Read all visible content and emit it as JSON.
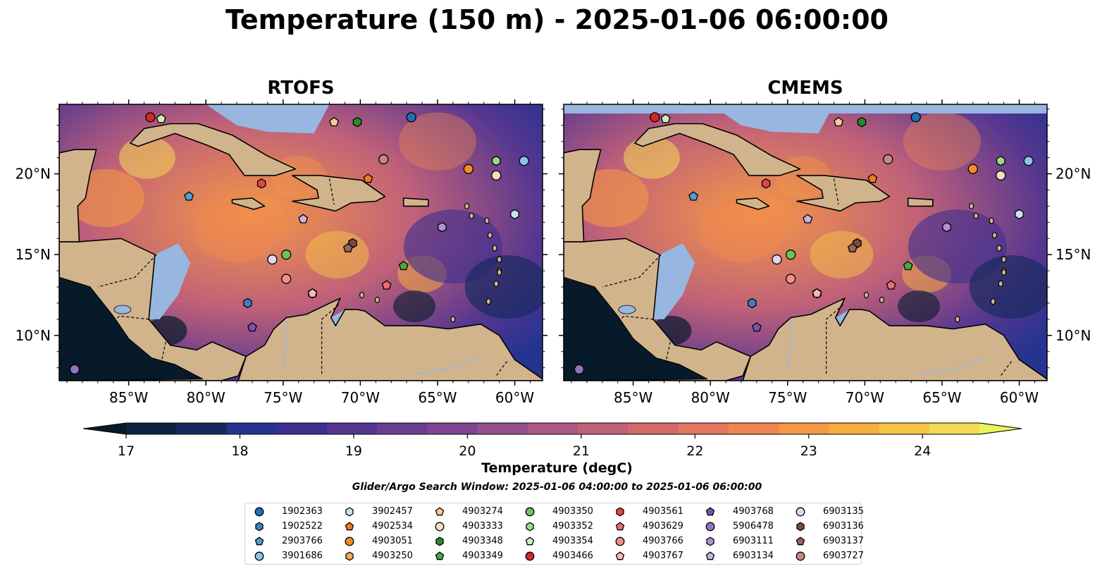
{
  "suptitle": "Temperature (150 m) - 2025-01-06 06:00:00",
  "panels": [
    {
      "title": "RTOFS"
    },
    {
      "title": "CMEMS"
    }
  ],
  "axes": {
    "x_ticks": [
      "85°W",
      "80°W",
      "75°W",
      "70°W",
      "65°W",
      "60°W"
    ],
    "y_ticks": [
      "20°N",
      "15°N",
      "10°N"
    ]
  },
  "colorbar": {
    "label": "Temperature (degC)",
    "ticks": [
      "17",
      "18",
      "19",
      "20",
      "21",
      "22",
      "23",
      "24"
    ],
    "colors": [
      "#0b2540",
      "#152a5c",
      "#253391",
      "#3c2f8f",
      "#553690",
      "#6a3f91",
      "#7e4590",
      "#964f8d",
      "#ab5886",
      "#c06179",
      "#d3696a",
      "#e3775d",
      "#ef8650",
      "#f59845",
      "#f7ac3f",
      "#f5c445",
      "#f2da55"
    ],
    "under_color": "#071a2a",
    "over_color": "#e8f55a"
  },
  "search_window": "Glider/Argo Search Window: 2025-01-06 04:00:00 to 2025-01-06 06:00:00",
  "legend": [
    {
      "id": "1902363",
      "marker": "circle",
      "color": "#1f6fb4"
    },
    {
      "id": "1902522",
      "marker": "hexagon",
      "color": "#3f7fc0"
    },
    {
      "id": "2903766",
      "marker": "pentagon",
      "color": "#4e9ed2"
    },
    {
      "id": "3901686",
      "marker": "circle",
      "color": "#8ec1e6"
    },
    {
      "id": "3902457",
      "marker": "hexagon",
      "color": "#c6e3f6"
    },
    {
      "id": "4902534",
      "marker": "pentagon",
      "color": "#f07c1a"
    },
    {
      "id": "4903051",
      "marker": "circle",
      "color": "#f58c25"
    },
    {
      "id": "4903250",
      "marker": "hexagon",
      "color": "#f6a860"
    },
    {
      "id": "4903274",
      "marker": "pentagon",
      "color": "#f9c893"
    },
    {
      "id": "4903333",
      "marker": "circle",
      "color": "#fcdcbc"
    },
    {
      "id": "4903348",
      "marker": "hexagon",
      "color": "#2a8a2a"
    },
    {
      "id": "4903349",
      "marker": "pentagon",
      "color": "#47aa3c"
    },
    {
      "id": "4903350",
      "marker": "circle",
      "color": "#6cc25a"
    },
    {
      "id": "4903352",
      "marker": "hexagon",
      "color": "#98d98a"
    },
    {
      "id": "4903354",
      "marker": "pentagon",
      "color": "#c8f0bd"
    },
    {
      "id": "4903466",
      "marker": "circle",
      "color": "#d62728"
    },
    {
      "id": "4903561",
      "marker": "hexagon",
      "color": "#e04646"
    },
    {
      "id": "4903629",
      "marker": "pentagon",
      "color": "#ec6d6d"
    },
    {
      "id": "4903766",
      "marker": "circle",
      "color": "#f28e8e"
    },
    {
      "id": "4903767",
      "marker": "pentagon",
      "color": "#f8b7b7"
    },
    {
      "id": "4903768",
      "marker": "pentagon",
      "color": "#7b52b0"
    },
    {
      "id": "5906478",
      "marker": "circle",
      "color": "#9572c2"
    },
    {
      "id": "6903111",
      "marker": "hexagon",
      "color": "#ae92d2"
    },
    {
      "id": "6903134",
      "marker": "pentagon",
      "color": "#c9b3e4"
    },
    {
      "id": "6903135",
      "marker": "circle",
      "color": "#e4d4f4"
    },
    {
      "id": "6903136",
      "marker": "hexagon",
      "color": "#7b4a3e"
    },
    {
      "id": "6903137",
      "marker": "pentagon",
      "color": "#9a6458"
    },
    {
      "id": "6903727",
      "marker": "circle",
      "color": "#c28a80"
    }
  ],
  "chart_data": {
    "type": "heatmap",
    "title": "Temperature (150 m) - 2025-01-06 06:00:00",
    "variable": "Temperature (degC)",
    "panels": [
      "RTOFS",
      "CMEMS"
    ],
    "xlim": [
      -89.5,
      -58.2
    ],
    "ylim": [
      7.2,
      24.3
    ],
    "colorbar_range": [
      17,
      24.5
    ],
    "colormap": "thermal-like, purple to yellow",
    "platforms": [
      {
        "id": "1902363",
        "lon": -66.7,
        "lat": 23.5
      },
      {
        "id": "1902522",
        "lon": -77.3,
        "lat": 12.0
      },
      {
        "id": "2903766",
        "lon": -81.1,
        "lat": 18.6
      },
      {
        "id": "3901686",
        "lon": -59.4,
        "lat": 20.8
      },
      {
        "id": "3902457",
        "lon": -60.0,
        "lat": 17.5
      },
      {
        "id": "4902534",
        "lon": -69.5,
        "lat": 19.7
      },
      {
        "id": "4903051",
        "lon": -63.0,
        "lat": 20.3
      },
      {
        "id": "4903250",
        "lon": -73.1,
        "lat": 12.6
      },
      {
        "id": "4903274",
        "lon": -71.7,
        "lat": 23.2
      },
      {
        "id": "4903333",
        "lon": -61.2,
        "lat": 19.9
      },
      {
        "id": "4903348",
        "lon": -70.2,
        "lat": 23.2
      },
      {
        "id": "4903349",
        "lon": -67.2,
        "lat": 14.3
      },
      {
        "id": "4903350",
        "lon": -74.8,
        "lat": 15.0
      },
      {
        "id": "4903352",
        "lon": -61.2,
        "lat": 20.8
      },
      {
        "id": "4903354",
        "lon": -82.9,
        "lat": 23.4
      },
      {
        "id": "4903466",
        "lon": -83.6,
        "lat": 23.5
      },
      {
        "id": "4903561",
        "lon": -76.4,
        "lat": 19.4
      },
      {
        "id": "4903629",
        "lon": -68.3,
        "lat": 13.1
      },
      {
        "id": "4903766",
        "lon": -74.8,
        "lat": 13.5
      },
      {
        "id": "4903767",
        "lon": -73.1,
        "lat": 12.6
      },
      {
        "id": "4903768",
        "lon": -77.0,
        "lat": 10.5
      },
      {
        "id": "5906478",
        "lon": -88.5,
        "lat": 7.9
      },
      {
        "id": "6903111",
        "lon": -64.7,
        "lat": 16.7
      },
      {
        "id": "6903134",
        "lon": -73.7,
        "lat": 17.2
      },
      {
        "id": "6903135",
        "lon": -75.7,
        "lat": 14.7
      },
      {
        "id": "6903136",
        "lon": -70.5,
        "lat": 15.7
      },
      {
        "id": "6903137",
        "lon": -70.8,
        "lat": 15.4
      },
      {
        "id": "6903727",
        "lon": -68.5,
        "lat": 20.9
      }
    ]
  }
}
